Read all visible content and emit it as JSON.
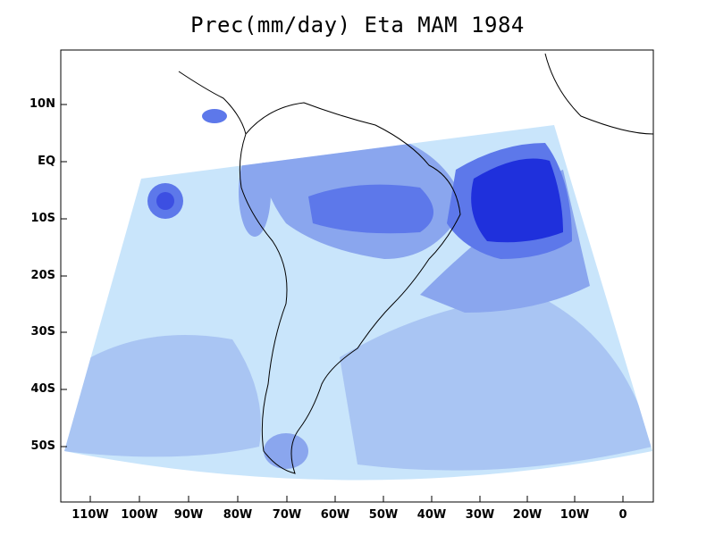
{
  "title": "Prec(mm/day) Eta MAM 1984",
  "colors": {
    "level1": "#c9e5fb",
    "level2": "#a9c5f3",
    "level3": "#8aa6ee",
    "level4": "#5d78ea",
    "level5": "#3c4fe2",
    "level6": "#1f30dc",
    "outline": "#000000"
  },
  "axes": {
    "lat_labels": [
      "10N",
      "EQ",
      "10S",
      "20S",
      "30S",
      "40S",
      "50S"
    ],
    "lon_labels": [
      "110W",
      "100W",
      "90W",
      "80W",
      "70W",
      "60W",
      "50W",
      "40W",
      "30W",
      "20W",
      "10W",
      "0"
    ]
  }
}
